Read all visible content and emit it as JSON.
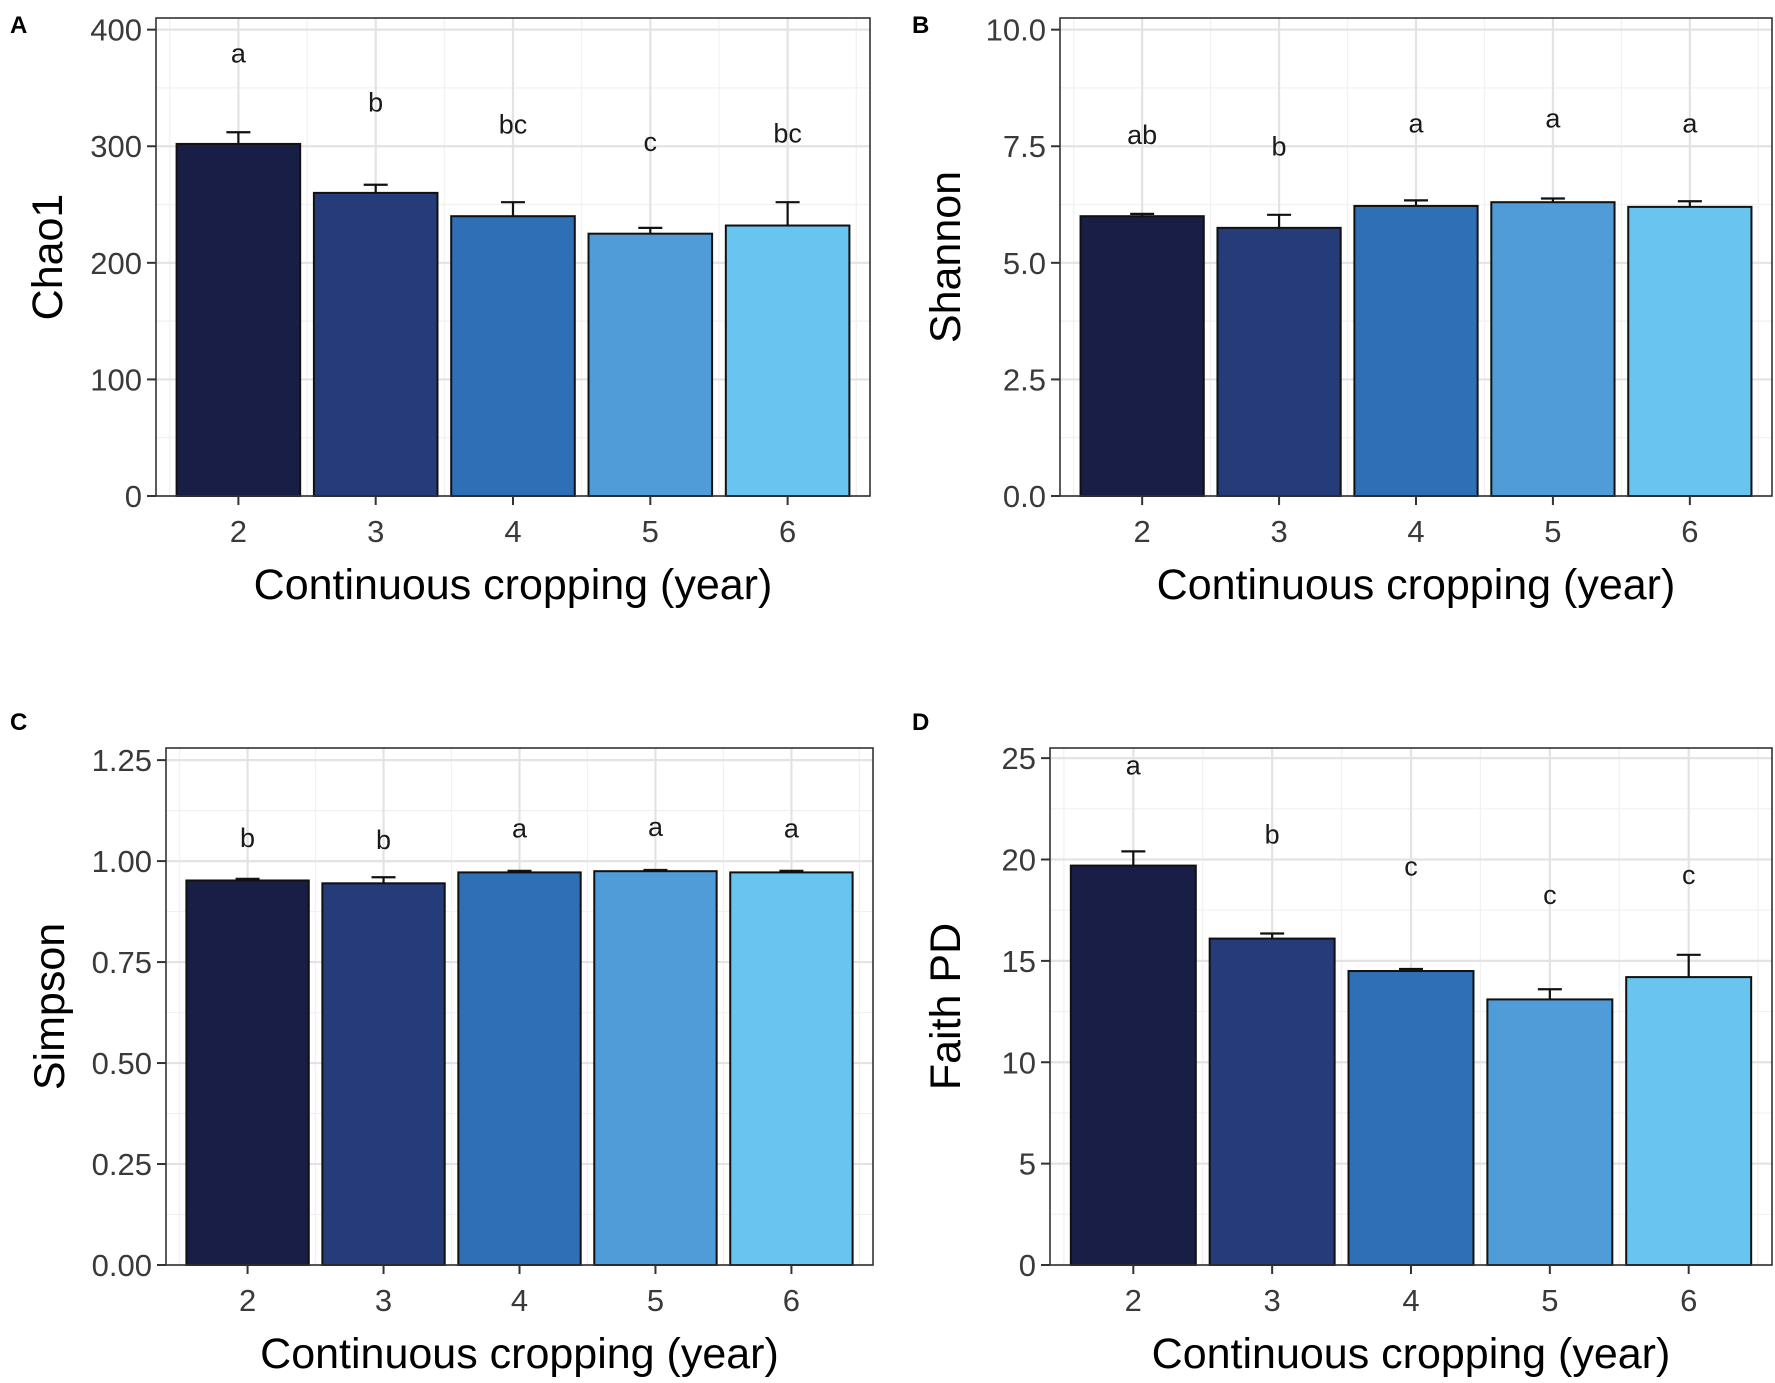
{
  "chart_data": [
    {
      "panel": "A",
      "type": "bar",
      "categories": [
        "2",
        "3",
        "4",
        "5",
        "6"
      ],
      "values": [
        302,
        260,
        240,
        225,
        232
      ],
      "errors": [
        10,
        7,
        12,
        5,
        20
      ],
      "significance": [
        "a",
        "b",
        "bc",
        "c",
        "bc"
      ],
      "sig_heights": [
        372,
        330,
        311,
        296,
        303
      ],
      "xlabel": "Continuous cropping (year)",
      "ylabel": "Chao1",
      "ylim": [
        0,
        410
      ],
      "yticks": [
        0,
        100,
        200,
        300,
        400
      ],
      "ytick_labels": [
        "0",
        "100",
        "200",
        "300",
        "400"
      ],
      "grid": true
    },
    {
      "panel": "B",
      "type": "bar",
      "categories": [
        "2",
        "3",
        "4",
        "5",
        "6"
      ],
      "values": [
        6.0,
        5.75,
        6.22,
        6.3,
        6.2
      ],
      "errors": [
        0.05,
        0.28,
        0.12,
        0.08,
        0.12
      ],
      "significance": [
        "ab",
        "b",
        "a",
        "a",
        "a"
      ],
      "sig_heights": [
        7.55,
        7.3,
        7.8,
        7.9,
        7.8
      ],
      "xlabel": "Continuous cropping (year)",
      "ylabel": "Shannon",
      "ylim": [
        0,
        10.25
      ],
      "yticks": [
        0,
        2.5,
        5,
        7.5,
        10
      ],
      "ytick_labels": [
        "0.0",
        "2.5",
        "5.0",
        "7.5",
        "10.0"
      ],
      "grid": true
    },
    {
      "panel": "C",
      "type": "bar",
      "categories": [
        "2",
        "3",
        "4",
        "5",
        "6"
      ],
      "values": [
        0.952,
        0.945,
        0.972,
        0.975,
        0.972
      ],
      "errors": [
        0.004,
        0.015,
        0.004,
        0.003,
        0.004
      ],
      "significance": [
        "b",
        "b",
        "a",
        "a",
        "a"
      ],
      "sig_heights": [
        1.035,
        1.03,
        1.058,
        1.062,
        1.058
      ],
      "xlabel": "Continuous cropping (year)",
      "ylabel": "Simpson",
      "ylim": [
        0,
        1.28
      ],
      "yticks": [
        0,
        0.25,
        0.5,
        0.75,
        1.0,
        1.25
      ],
      "ytick_labels": [
        "0.00",
        "0.25",
        "0.50",
        "0.75",
        "1.00",
        "1.25"
      ],
      "grid": true
    },
    {
      "panel": "D",
      "type": "bar",
      "categories": [
        "2",
        "3",
        "4",
        "5",
        "6"
      ],
      "values": [
        19.7,
        16.1,
        14.5,
        13.1,
        14.2
      ],
      "errors": [
        0.7,
        0.25,
        0.1,
        0.5,
        1.1
      ],
      "significance": [
        "a",
        "b",
        "c",
        "c",
        "c"
      ],
      "sig_heights": [
        24.2,
        20.8,
        19.2,
        17.8,
        18.8
      ],
      "xlabel": "Continuous cropping (year)",
      "ylabel": "Faith PD",
      "ylim": [
        0,
        25.5
      ],
      "yticks": [
        0,
        5,
        10,
        15,
        20,
        25
      ],
      "ytick_labels": [
        "0",
        "5",
        "10",
        "15",
        "20",
        "25"
      ],
      "grid": true
    }
  ],
  "colors": [
    "#181e45",
    "#253b7a",
    "#2e6fb6",
    "#4f9cd8",
    "#68c5ef"
  ]
}
